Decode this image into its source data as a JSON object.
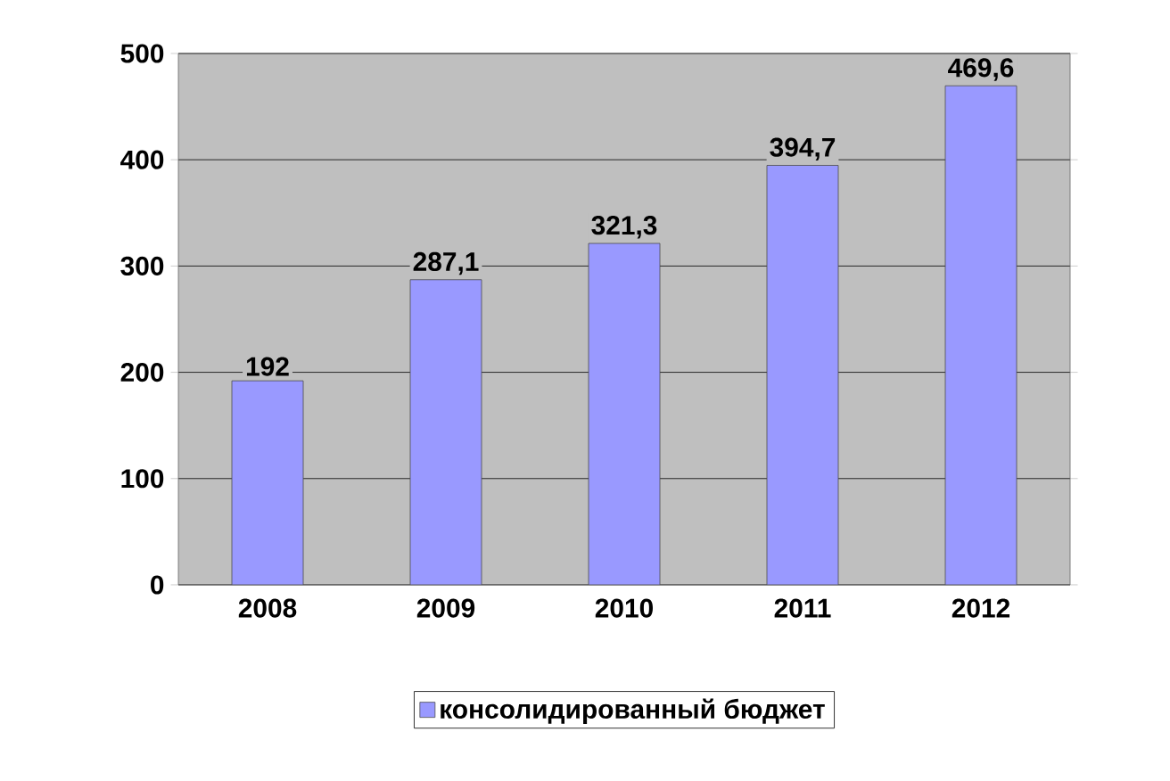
{
  "chart_data": {
    "type": "bar",
    "categories": [
      "2008",
      "2009",
      "2010",
      "2011",
      "2012"
    ],
    "series": [
      {
        "name": "консолидированный бюджет",
        "color": "#9999ff",
        "values": [
          192,
          287.1,
          321.3,
          394.7,
          469.6
        ],
        "value_labels": [
          "192",
          "287,1",
          "321,3",
          "394,7",
          "469,6"
        ]
      }
    ],
    "ylim": [
      0,
      500
    ],
    "yticks": [
      0,
      100,
      200,
      300,
      400,
      500
    ],
    "grid": "y",
    "legend": "bottom"
  }
}
